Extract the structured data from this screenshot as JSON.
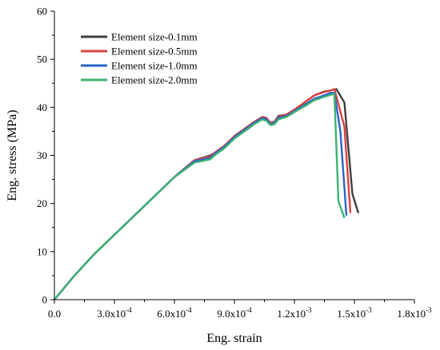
{
  "chart_data": {
    "type": "line",
    "xlabel": "Eng. strain",
    "ylabel": "Eng. stress (MPa)",
    "xlim": [
      0,
      0.0018
    ],
    "ylim": [
      0,
      60
    ],
    "grid": false,
    "legend_position": "top-left",
    "x_ticks": [
      {
        "value": 0,
        "mantissa": "0.0",
        "exp": ""
      },
      {
        "value": 0.0003,
        "mantissa": "3.0x10",
        "exp": "-4"
      },
      {
        "value": 0.0006,
        "mantissa": "6.0x10",
        "exp": "-4"
      },
      {
        "value": 0.0009,
        "mantissa": "9.0x10",
        "exp": "-4"
      },
      {
        "value": 0.0012,
        "mantissa": "1.2x10",
        "exp": "-3"
      },
      {
        "value": 0.0015,
        "mantissa": "1.5x10",
        "exp": "-3"
      },
      {
        "value": 0.0018,
        "mantissa": "1.8x10",
        "exp": "-3"
      }
    ],
    "y_ticks": [
      0,
      10,
      20,
      30,
      40,
      50,
      60
    ],
    "series": [
      {
        "name": "Element size-0.1mm",
        "color": "#404040",
        "x": [
          0,
          0.0001,
          0.0002,
          0.0003,
          0.0004,
          0.0005,
          0.0006,
          0.0007,
          0.00078,
          0.0008,
          0.00085,
          0.0009,
          0.00095,
          0.001,
          0.00104,
          0.00106,
          0.00108,
          0.0011,
          0.00112,
          0.00116,
          0.0012,
          0.00125,
          0.0013,
          0.00135,
          0.00138,
          0.00141,
          0.00145,
          0.00149,
          0.00152
        ],
        "y": [
          0,
          5,
          9.5,
          13.5,
          17.5,
          21.5,
          25.5,
          29,
          30,
          30.5,
          32,
          34,
          35.5,
          37,
          38,
          37.8,
          36.8,
          37,
          38.2,
          38.5,
          39.5,
          41,
          42.5,
          43.3,
          43.5,
          43.8,
          41,
          22,
          18
        ]
      },
      {
        "name": "Element size-0.5mm",
        "color": "#e04040",
        "x": [
          0,
          0.0001,
          0.0002,
          0.0003,
          0.0004,
          0.0005,
          0.0006,
          0.0007,
          0.00078,
          0.0008,
          0.00085,
          0.0009,
          0.00095,
          0.001,
          0.00104,
          0.00106,
          0.00108,
          0.0011,
          0.00112,
          0.00116,
          0.0012,
          0.00125,
          0.0013,
          0.00135,
          0.00138,
          0.0014,
          0.00145,
          0.00148
        ],
        "y": [
          0,
          5,
          9.5,
          13.5,
          17.5,
          21.5,
          25.5,
          29,
          29.8,
          30.5,
          32,
          34,
          35.5,
          37,
          38,
          37.8,
          36.8,
          37,
          38,
          38.5,
          39.5,
          41,
          42.5,
          43.2,
          43.5,
          43.8,
          36,
          18
        ]
      },
      {
        "name": "Element size-1.0mm",
        "color": "#2a64c8",
        "x": [
          0,
          0.0001,
          0.0002,
          0.0003,
          0.0004,
          0.0005,
          0.0006,
          0.0007,
          0.00078,
          0.0008,
          0.00085,
          0.0009,
          0.00095,
          0.001,
          0.00104,
          0.00106,
          0.00108,
          0.0011,
          0.00112,
          0.00116,
          0.0012,
          0.00125,
          0.0013,
          0.00135,
          0.00138,
          0.0014,
          0.00143,
          0.00146
        ],
        "y": [
          0,
          5,
          9.5,
          13.5,
          17.5,
          21.5,
          25.5,
          28.8,
          29.5,
          30.3,
          31.8,
          33.8,
          35.3,
          36.8,
          37.8,
          37.5,
          36.5,
          36.8,
          37.8,
          38.2,
          39.2,
          40.5,
          41.8,
          42.5,
          43,
          43,
          35,
          17.5
        ]
      },
      {
        "name": "Element size-2.0mm",
        "color": "#3cb371",
        "x": [
          0,
          0.0001,
          0.0002,
          0.0003,
          0.0004,
          0.0005,
          0.0006,
          0.0007,
          0.00078,
          0.0008,
          0.00085,
          0.0009,
          0.00095,
          0.001,
          0.00104,
          0.00106,
          0.00108,
          0.0011,
          0.00112,
          0.00116,
          0.0012,
          0.00125,
          0.0013,
          0.00135,
          0.00138,
          0.0014,
          0.00142,
          0.00145
        ],
        "y": [
          0,
          5,
          9.5,
          13.5,
          17.5,
          21.5,
          25.5,
          28.5,
          29.2,
          30,
          31.5,
          33.5,
          35,
          36.5,
          37.5,
          37.2,
          36.3,
          36.5,
          37.5,
          38,
          39,
          40.2,
          41.5,
          42.2,
          42.6,
          42.8,
          20.5,
          17
        ]
      }
    ]
  }
}
